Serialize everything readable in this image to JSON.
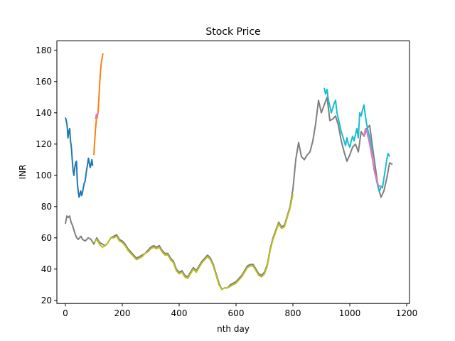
{
  "chart_data": {
    "type": "line",
    "title": "Stock Price",
    "xlabel": "nth day",
    "ylabel": "INR",
    "xlim": [
      -30,
      1210
    ],
    "ylim": [
      18,
      186
    ],
    "xticks": [
      0,
      200,
      400,
      600,
      800,
      1000,
      1200
    ],
    "yticks": [
      20,
      40,
      60,
      80,
      100,
      120,
      140,
      160,
      180
    ],
    "grid": false,
    "legend": "none",
    "series": [
      {
        "color": "#7f7f7f",
        "points": [
          [
            0,
            69
          ],
          [
            5,
            74
          ],
          [
            10,
            73
          ],
          [
            15,
            74
          ],
          [
            20,
            70
          ],
          [
            25,
            68
          ],
          [
            30,
            65
          ],
          [
            35,
            62
          ],
          [
            40,
            60
          ],
          [
            45,
            59
          ],
          [
            50,
            60
          ],
          [
            55,
            61
          ],
          [
            60,
            59
          ],
          [
            70,
            58
          ],
          [
            80,
            60
          ],
          [
            90,
            59
          ],
          [
            100,
            56
          ],
          [
            110,
            60
          ],
          [
            120,
            57
          ],
          [
            130,
            56
          ],
          [
            140,
            55
          ],
          [
            150,
            57
          ],
          [
            160,
            60
          ],
          [
            170,
            61
          ],
          [
            180,
            62
          ],
          [
            190,
            59
          ],
          [
            200,
            58
          ],
          [
            210,
            56
          ],
          [
            220,
            53
          ],
          [
            230,
            51
          ],
          [
            240,
            49
          ],
          [
            250,
            47
          ],
          [
            260,
            48
          ],
          [
            270,
            49
          ],
          [
            280,
            50
          ],
          [
            290,
            52
          ],
          [
            300,
            54
          ],
          [
            310,
            55
          ],
          [
            320,
            54
          ],
          [
            330,
            55
          ],
          [
            340,
            52
          ],
          [
            350,
            50
          ],
          [
            360,
            50
          ],
          [
            370,
            47
          ],
          [
            380,
            45
          ],
          [
            390,
            40
          ],
          [
            400,
            38
          ],
          [
            410,
            39
          ],
          [
            420,
            36
          ],
          [
            430,
            35
          ],
          [
            440,
            38
          ],
          [
            450,
            41
          ],
          [
            460,
            39
          ],
          [
            470,
            42
          ],
          [
            480,
            45
          ],
          [
            490,
            47
          ],
          [
            500,
            49
          ],
          [
            510,
            47
          ],
          [
            520,
            43
          ],
          [
            530,
            37
          ],
          [
            540,
            31
          ],
          [
            550,
            27
          ],
          [
            560,
            28
          ],
          [
            570,
            28
          ],
          [
            580,
            30
          ],
          [
            590,
            31
          ],
          [
            600,
            32
          ],
          [
            610,
            34
          ],
          [
            620,
            36
          ],
          [
            630,
            39
          ],
          [
            640,
            42
          ],
          [
            650,
            43
          ],
          [
            660,
            43
          ],
          [
            670,
            40
          ],
          [
            680,
            37
          ],
          [
            690,
            36
          ],
          [
            700,
            38
          ],
          [
            710,
            43
          ],
          [
            720,
            53
          ],
          [
            730,
            60
          ],
          [
            740,
            65
          ],
          [
            750,
            70
          ],
          [
            760,
            67
          ],
          [
            770,
            68
          ],
          [
            780,
            74
          ],
          [
            790,
            80
          ],
          [
            800,
            91
          ],
          [
            810,
            110
          ],
          [
            820,
            121
          ],
          [
            830,
            112
          ],
          [
            840,
            110
          ],
          [
            850,
            113
          ],
          [
            860,
            115
          ],
          [
            870,
            122
          ],
          [
            880,
            133
          ],
          [
            890,
            148
          ],
          [
            900,
            140
          ],
          [
            910,
            145
          ],
          [
            920,
            150
          ],
          [
            930,
            135
          ],
          [
            940,
            136
          ],
          [
            950,
            138
          ],
          [
            960,
            132
          ],
          [
            970,
            122
          ],
          [
            980,
            115
          ],
          [
            990,
            109
          ],
          [
            1000,
            113
          ],
          [
            1010,
            118
          ],
          [
            1020,
            120
          ],
          [
            1030,
            115
          ],
          [
            1040,
            128
          ],
          [
            1050,
            125
          ],
          [
            1060,
            130
          ],
          [
            1070,
            132
          ],
          [
            1080,
            118
          ],
          [
            1090,
            105
          ],
          [
            1100,
            92
          ],
          [
            1110,
            86
          ],
          [
            1120,
            90
          ],
          [
            1130,
            98
          ],
          [
            1140,
            108
          ],
          [
            1150,
            107
          ]
        ]
      },
      {
        "color": "#bcbd22",
        "points": [
          [
            100,
            57
          ],
          [
            110,
            59
          ],
          [
            120,
            56
          ],
          [
            130,
            54
          ],
          [
            140,
            55
          ],
          [
            150,
            57
          ],
          [
            160,
            60
          ],
          [
            170,
            60
          ],
          [
            180,
            61
          ],
          [
            190,
            58
          ],
          [
            200,
            57
          ],
          [
            210,
            55
          ],
          [
            220,
            52
          ],
          [
            230,
            50
          ],
          [
            240,
            48
          ],
          [
            250,
            46
          ],
          [
            260,
            47
          ],
          [
            270,
            48
          ],
          [
            280,
            50
          ],
          [
            290,
            51
          ],
          [
            300,
            53
          ],
          [
            310,
            54
          ],
          [
            320,
            53
          ],
          [
            330,
            54
          ],
          [
            340,
            51
          ],
          [
            350,
            49
          ],
          [
            360,
            49
          ],
          [
            370,
            46
          ],
          [
            380,
            44
          ],
          [
            390,
            39
          ],
          [
            400,
            37
          ],
          [
            410,
            38
          ],
          [
            420,
            35
          ],
          [
            430,
            34
          ],
          [
            440,
            37
          ],
          [
            450,
            40
          ],
          [
            460,
            38
          ],
          [
            470,
            41
          ],
          [
            480,
            44
          ],
          [
            490,
            46
          ],
          [
            500,
            48
          ],
          [
            510,
            46
          ],
          [
            520,
            42
          ],
          [
            530,
            36
          ],
          [
            540,
            30
          ],
          [
            550,
            27
          ],
          [
            560,
            28
          ],
          [
            570,
            28
          ],
          [
            580,
            29
          ],
          [
            590,
            30
          ],
          [
            600,
            31
          ],
          [
            610,
            33
          ],
          [
            620,
            35
          ],
          [
            630,
            38
          ],
          [
            640,
            41
          ],
          [
            650,
            42
          ],
          [
            660,
            42
          ],
          [
            670,
            39
          ],
          [
            680,
            36
          ],
          [
            690,
            35
          ],
          [
            700,
            37
          ],
          [
            710,
            42
          ],
          [
            720,
            52
          ],
          [
            730,
            59
          ],
          [
            740,
            64
          ],
          [
            750,
            69
          ],
          [
            760,
            66
          ],
          [
            770,
            67
          ],
          [
            780,
            73
          ],
          [
            790,
            79
          ],
          [
            800,
            88
          ]
        ]
      },
      {
        "color": "#17becf",
        "points": [
          [
            910,
            156
          ],
          [
            915,
            152
          ],
          [
            920,
            155
          ],
          [
            925,
            148
          ],
          [
            930,
            144
          ],
          [
            935,
            140
          ],
          [
            940,
            143
          ],
          [
            945,
            146
          ],
          [
            950,
            148
          ],
          [
            955,
            140
          ],
          [
            960,
            136
          ],
          [
            965,
            132
          ],
          [
            970,
            128
          ],
          [
            975,
            125
          ],
          [
            980,
            122
          ],
          [
            985,
            119
          ],
          [
            990,
            124
          ],
          [
            995,
            120
          ],
          [
            1000,
            118
          ],
          [
            1005,
            122
          ],
          [
            1010,
            125
          ],
          [
            1015,
            122
          ],
          [
            1020,
            126
          ],
          [
            1025,
            130
          ],
          [
            1030,
            124
          ],
          [
            1035,
            140
          ],
          [
            1040,
            138
          ],
          [
            1045,
            142
          ],
          [
            1050,
            145
          ],
          [
            1055,
            138
          ],
          [
            1060,
            132
          ],
          [
            1065,
            128
          ],
          [
            1070,
            124
          ],
          [
            1075,
            118
          ],
          [
            1080,
            110
          ],
          [
            1085,
            104
          ],
          [
            1090,
            100
          ],
          [
            1095,
            96
          ],
          [
            1100,
            92
          ],
          [
            1105,
            90
          ],
          [
            1110,
            93
          ],
          [
            1115,
            92
          ],
          [
            1120,
            98
          ],
          [
            1125,
            104
          ],
          [
            1130,
            110
          ],
          [
            1135,
            114
          ],
          [
            1140,
            112
          ]
        ]
      },
      {
        "color": "#e377c2",
        "points": [
          [
            1050,
            125
          ],
          [
            1055,
            130
          ],
          [
            1060,
            128
          ],
          [
            1065,
            124
          ],
          [
            1070,
            120
          ],
          [
            1080,
            110
          ],
          [
            1090,
            100
          ],
          [
            1100,
            94
          ],
          [
            1110,
            92
          ]
        ]
      },
      {
        "color": "#1f77b4",
        "points": [
          [
            0,
            137
          ],
          [
            3,
            135
          ],
          [
            6,
            132
          ],
          [
            9,
            124
          ],
          [
            12,
            128
          ],
          [
            15,
            130
          ],
          [
            18,
            122
          ],
          [
            21,
            118
          ],
          [
            24,
            110
          ],
          [
            27,
            103
          ],
          [
            30,
            100
          ],
          [
            33,
            105
          ],
          [
            36,
            108
          ],
          [
            39,
            109
          ],
          [
            42,
            95
          ],
          [
            45,
            90
          ],
          [
            48,
            86
          ],
          [
            51,
            88
          ],
          [
            54,
            90
          ],
          [
            57,
            87
          ],
          [
            60,
            89
          ],
          [
            63,
            92
          ],
          [
            66,
            95
          ],
          [
            69,
            96
          ],
          [
            72,
            100
          ],
          [
            75,
            104
          ],
          [
            78,
            107
          ],
          [
            81,
            111
          ],
          [
            84,
            108
          ],
          [
            87,
            105
          ],
          [
            90,
            107
          ],
          [
            93,
            110
          ],
          [
            96,
            106
          ]
        ]
      },
      {
        "color": "#ff7f0e",
        "points": [
          [
            100,
            113
          ],
          [
            103,
            122
          ],
          [
            106,
            130
          ],
          [
            109,
            136
          ],
          [
            112,
            137
          ],
          [
            115,
            141
          ],
          [
            118,
            150
          ],
          [
            121,
            160
          ],
          [
            124,
            168
          ],
          [
            127,
            173
          ],
          [
            130,
            176
          ],
          [
            132,
            178
          ]
        ]
      },
      {
        "color": "#e377c2",
        "points": [
          [
            106,
            136
          ],
          [
            109,
            139
          ],
          [
            112,
            138
          ],
          [
            115,
            140
          ]
        ]
      }
    ]
  }
}
